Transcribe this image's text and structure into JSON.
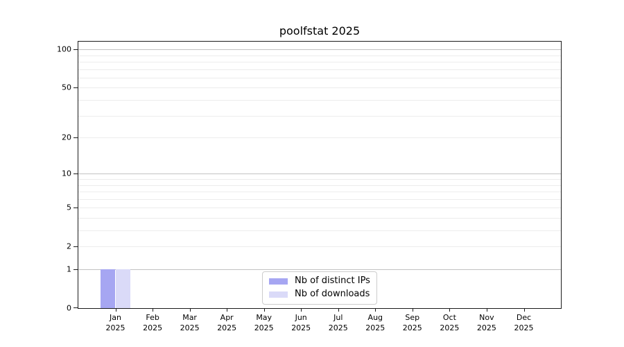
{
  "figure": {
    "title": "poolfstat 2025"
  },
  "chart_data": {
    "type": "bar",
    "title": "poolfstat 2025",
    "categories": [
      "Jan",
      "Feb",
      "Mar",
      "Apr",
      "May",
      "Jun",
      "Jul",
      "Aug",
      "Sep",
      "Oct",
      "Nov",
      "Dec"
    ],
    "category_year": "2025",
    "series": [
      {
        "name": "Nb of distinct IPs",
        "color": "#a6a6f2",
        "values": [
          1,
          0,
          0,
          0,
          0,
          0,
          0,
          0,
          0,
          0,
          0,
          0
        ]
      },
      {
        "name": "Nb of downloads",
        "color": "#dadaf8",
        "values": [
          1,
          0,
          0,
          0,
          0,
          0,
          0,
          0,
          0,
          0,
          0,
          0
        ]
      }
    ],
    "xlabel": "",
    "ylabel": "",
    "y_scale": "log10(1+y)",
    "y_ticks": [
      0,
      1,
      2,
      5,
      10,
      20,
      50,
      100
    ],
    "y_major_gridlines": [
      1,
      10,
      100
    ],
    "y_minor_gridlines": [
      2,
      3,
      4,
      5,
      6,
      7,
      8,
      9,
      20,
      30,
      40,
      50,
      60,
      70,
      80,
      90
    ],
    "ylim": [
      0,
      115
    ],
    "xlim": [
      -1,
      12
    ],
    "bar_width_units": 0.4,
    "grid": true,
    "legend_position": "lower center",
    "legend_entries": [
      "Nb of distinct IPs",
      "Nb of downloads"
    ]
  },
  "colors": {
    "distinct_ips": "#a6a6f2",
    "downloads": "#dadaf8",
    "major_gridline": "#c2c2c2",
    "minor_gridline": "#ececec",
    "axis": "#1a1a1a",
    "background": "#ffffff"
  }
}
